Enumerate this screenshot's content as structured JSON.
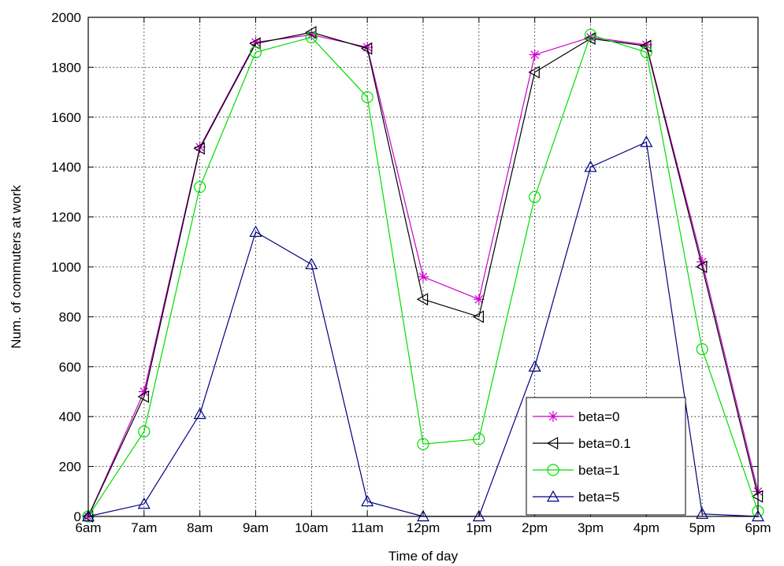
{
  "chart_data": {
    "type": "line",
    "title": "",
    "xlabel": "Time of day",
    "ylabel": "Num. of commuters at work",
    "categories": [
      "6am",
      "7am",
      "8am",
      "9am",
      "10am",
      "11am",
      "12pm",
      "1pm",
      "2pm",
      "3pm",
      "4pm",
      "5pm",
      "6pm"
    ],
    "ylim": [
      0,
      2000
    ],
    "yticks": [
      0,
      200,
      400,
      600,
      800,
      1000,
      1200,
      1400,
      1600,
      1800,
      2000
    ],
    "grid": true,
    "legend_position": "bottom-right",
    "series": [
      {
        "name": "beta=0",
        "color": "#cc00cc",
        "marker": "star",
        "values": [
          0,
          500,
          1480,
          1900,
          1930,
          1880,
          960,
          870,
          1850,
          1920,
          1890,
          1020,
          100
        ]
      },
      {
        "name": "beta=0.1",
        "color": "#000000",
        "marker": "triangle-left",
        "values": [
          0,
          480,
          1475,
          1895,
          1940,
          1875,
          870,
          800,
          1780,
          1915,
          1885,
          1000,
          80
        ]
      },
      {
        "name": "beta=1",
        "color": "#00dd00",
        "marker": "circle",
        "values": [
          0,
          340,
          1320,
          1860,
          1920,
          1680,
          290,
          310,
          1280,
          1930,
          1860,
          670,
          20
        ]
      },
      {
        "name": "beta=5",
        "color": "#000080",
        "marker": "triangle-up",
        "values": [
          0,
          50,
          410,
          1140,
          1010,
          60,
          0,
          0,
          600,
          1400,
          1500,
          10,
          0
        ]
      }
    ]
  }
}
